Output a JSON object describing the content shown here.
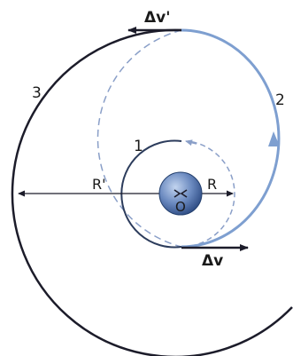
{
  "labels": {
    "orbit_1": "1",
    "orbit_2": "2",
    "orbit_3": "3",
    "radius_inner": "R",
    "radius_outer": "R'",
    "center": "O",
    "delta_v_first": "Δv",
    "delta_v_second": "Δv'"
  },
  "colors": {
    "orbit_dark": "#1c1c2a",
    "transfer_blue": "#7e9fd0",
    "dashed_blue": "#8a9fc8",
    "planet_light": "#a9c0e4",
    "planet_dark": "#2c4a82",
    "text": "#1a1a1a"
  }
}
